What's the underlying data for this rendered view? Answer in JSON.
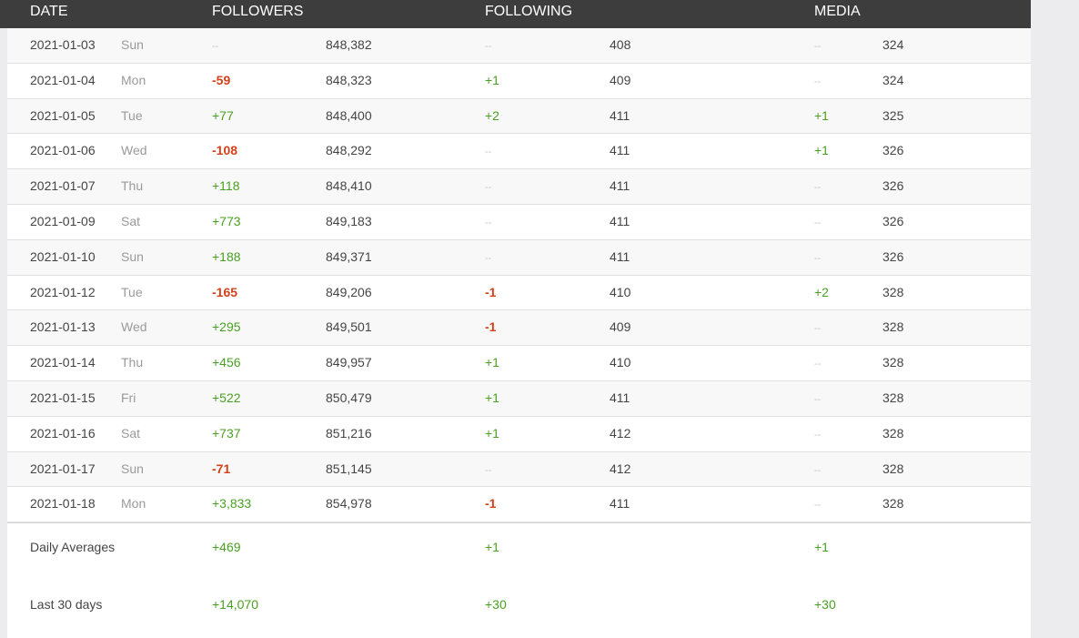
{
  "headers": {
    "date": "DATE",
    "followers": "FOLLOWERS",
    "following": "FOLLOWING",
    "media": "MEDIA"
  },
  "rows": [
    {
      "date": "2021-01-03",
      "dow": "Sun",
      "followers_change": "--",
      "followers": "848,382",
      "following_change": "--",
      "following": "408",
      "media_change": "--",
      "media": "324"
    },
    {
      "date": "2021-01-04",
      "dow": "Mon",
      "followers_change": "-59",
      "followers": "848,323",
      "following_change": "+1",
      "following": "409",
      "media_change": "--",
      "media": "324"
    },
    {
      "date": "2021-01-05",
      "dow": "Tue",
      "followers_change": "+77",
      "followers": "848,400",
      "following_change": "+2",
      "following": "411",
      "media_change": "+1",
      "media": "325"
    },
    {
      "date": "2021-01-06",
      "dow": "Wed",
      "followers_change": "-108",
      "followers": "848,292",
      "following_change": "--",
      "following": "411",
      "media_change": "+1",
      "media": "326"
    },
    {
      "date": "2021-01-07",
      "dow": "Thu",
      "followers_change": "+118",
      "followers": "848,410",
      "following_change": "--",
      "following": "411",
      "media_change": "--",
      "media": "326"
    },
    {
      "date": "2021-01-09",
      "dow": "Sat",
      "followers_change": "+773",
      "followers": "849,183",
      "following_change": "--",
      "following": "411",
      "media_change": "--",
      "media": "326"
    },
    {
      "date": "2021-01-10",
      "dow": "Sun",
      "followers_change": "+188",
      "followers": "849,371",
      "following_change": "--",
      "following": "411",
      "media_change": "--",
      "media": "326"
    },
    {
      "date": "2021-01-12",
      "dow": "Tue",
      "followers_change": "-165",
      "followers": "849,206",
      "following_change": "-1",
      "following": "410",
      "media_change": "+2",
      "media": "328"
    },
    {
      "date": "2021-01-13",
      "dow": "Wed",
      "followers_change": "+295",
      "followers": "849,501",
      "following_change": "-1",
      "following": "409",
      "media_change": "--",
      "media": "328"
    },
    {
      "date": "2021-01-14",
      "dow": "Thu",
      "followers_change": "+456",
      "followers": "849,957",
      "following_change": "+1",
      "following": "410",
      "media_change": "--",
      "media": "328"
    },
    {
      "date": "2021-01-15",
      "dow": "Fri",
      "followers_change": "+522",
      "followers": "850,479",
      "following_change": "+1",
      "following": "411",
      "media_change": "--",
      "media": "328"
    },
    {
      "date": "2021-01-16",
      "dow": "Sat",
      "followers_change": "+737",
      "followers": "851,216",
      "following_change": "+1",
      "following": "412",
      "media_change": "--",
      "media": "328"
    },
    {
      "date": "2021-01-17",
      "dow": "Sun",
      "followers_change": "-71",
      "followers": "851,145",
      "following_change": "--",
      "following": "412",
      "media_change": "--",
      "media": "328"
    },
    {
      "date": "2021-01-18",
      "dow": "Mon",
      "followers_change": "+3,833",
      "followers": "854,978",
      "following_change": "-1",
      "following": "411",
      "media_change": "--",
      "media": "328"
    }
  ],
  "summary": [
    {
      "label": "Daily Averages",
      "followers": "+469",
      "following": "+1",
      "media": "+1"
    },
    {
      "label": "Last 30 days",
      "followers": "+14,070",
      "following": "+30",
      "media": "+30"
    }
  ],
  "colors": {
    "header_bg": "#3d3d3d",
    "positive": "#4aa022",
    "negative": "#d2411a",
    "none": "#c4c4c4",
    "page_bg": "#ececee"
  }
}
